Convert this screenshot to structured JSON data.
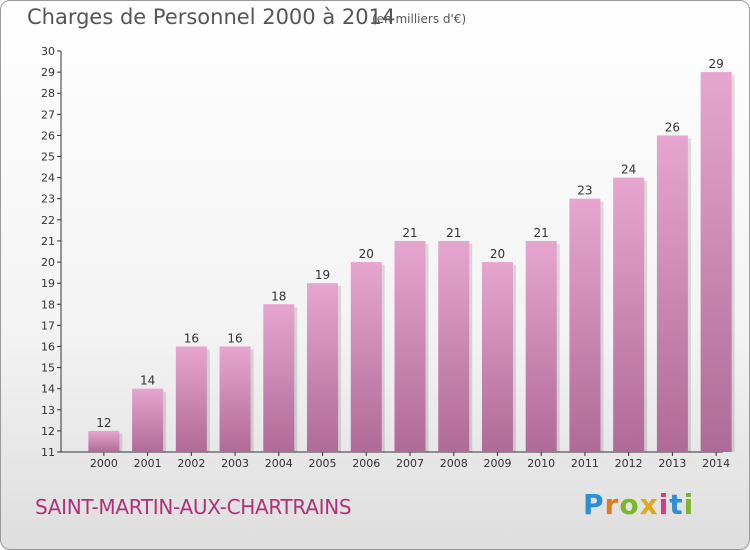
{
  "title": "Charges de Personnel 2000 à 2014",
  "subtitle": "(en milliers d'€)",
  "commune": "SAINT-MARTIN-AUX-CHARTRAINS",
  "brand": {
    "letters": [
      {
        "ch": "P",
        "color": "#2d8fd6"
      },
      {
        "ch": "r",
        "color": "#e07a1c"
      },
      {
        "ch": "o",
        "color": "#7fb52e"
      },
      {
        "ch": "x",
        "color": "#e0a81c"
      },
      {
        "ch": "i",
        "color": "#d63a7a"
      },
      {
        "ch": "t",
        "color": "#2d8fd6"
      },
      {
        "ch": "i",
        "color": "#7fb52e"
      }
    ]
  },
  "colors": {
    "bar_top": "#e6a6cf",
    "bar_bottom": "#b06a97",
    "axis": "#333333"
  },
  "chart_data": {
    "type": "bar",
    "categories": [
      "2000",
      "2001",
      "2002",
      "2003",
      "2004",
      "2005",
      "2006",
      "2007",
      "2008",
      "2009",
      "2010",
      "2011",
      "2012",
      "2013",
      "2014"
    ],
    "values": [
      12,
      14,
      16,
      16,
      18,
      19,
      20,
      21,
      21,
      20,
      21,
      23,
      24,
      26,
      29
    ],
    "ylim": [
      11,
      30
    ],
    "yticks": [
      11,
      12,
      13,
      14,
      15,
      16,
      17,
      18,
      19,
      20,
      21,
      22,
      23,
      24,
      25,
      26,
      27,
      28,
      29,
      30
    ],
    "grid": false
  }
}
